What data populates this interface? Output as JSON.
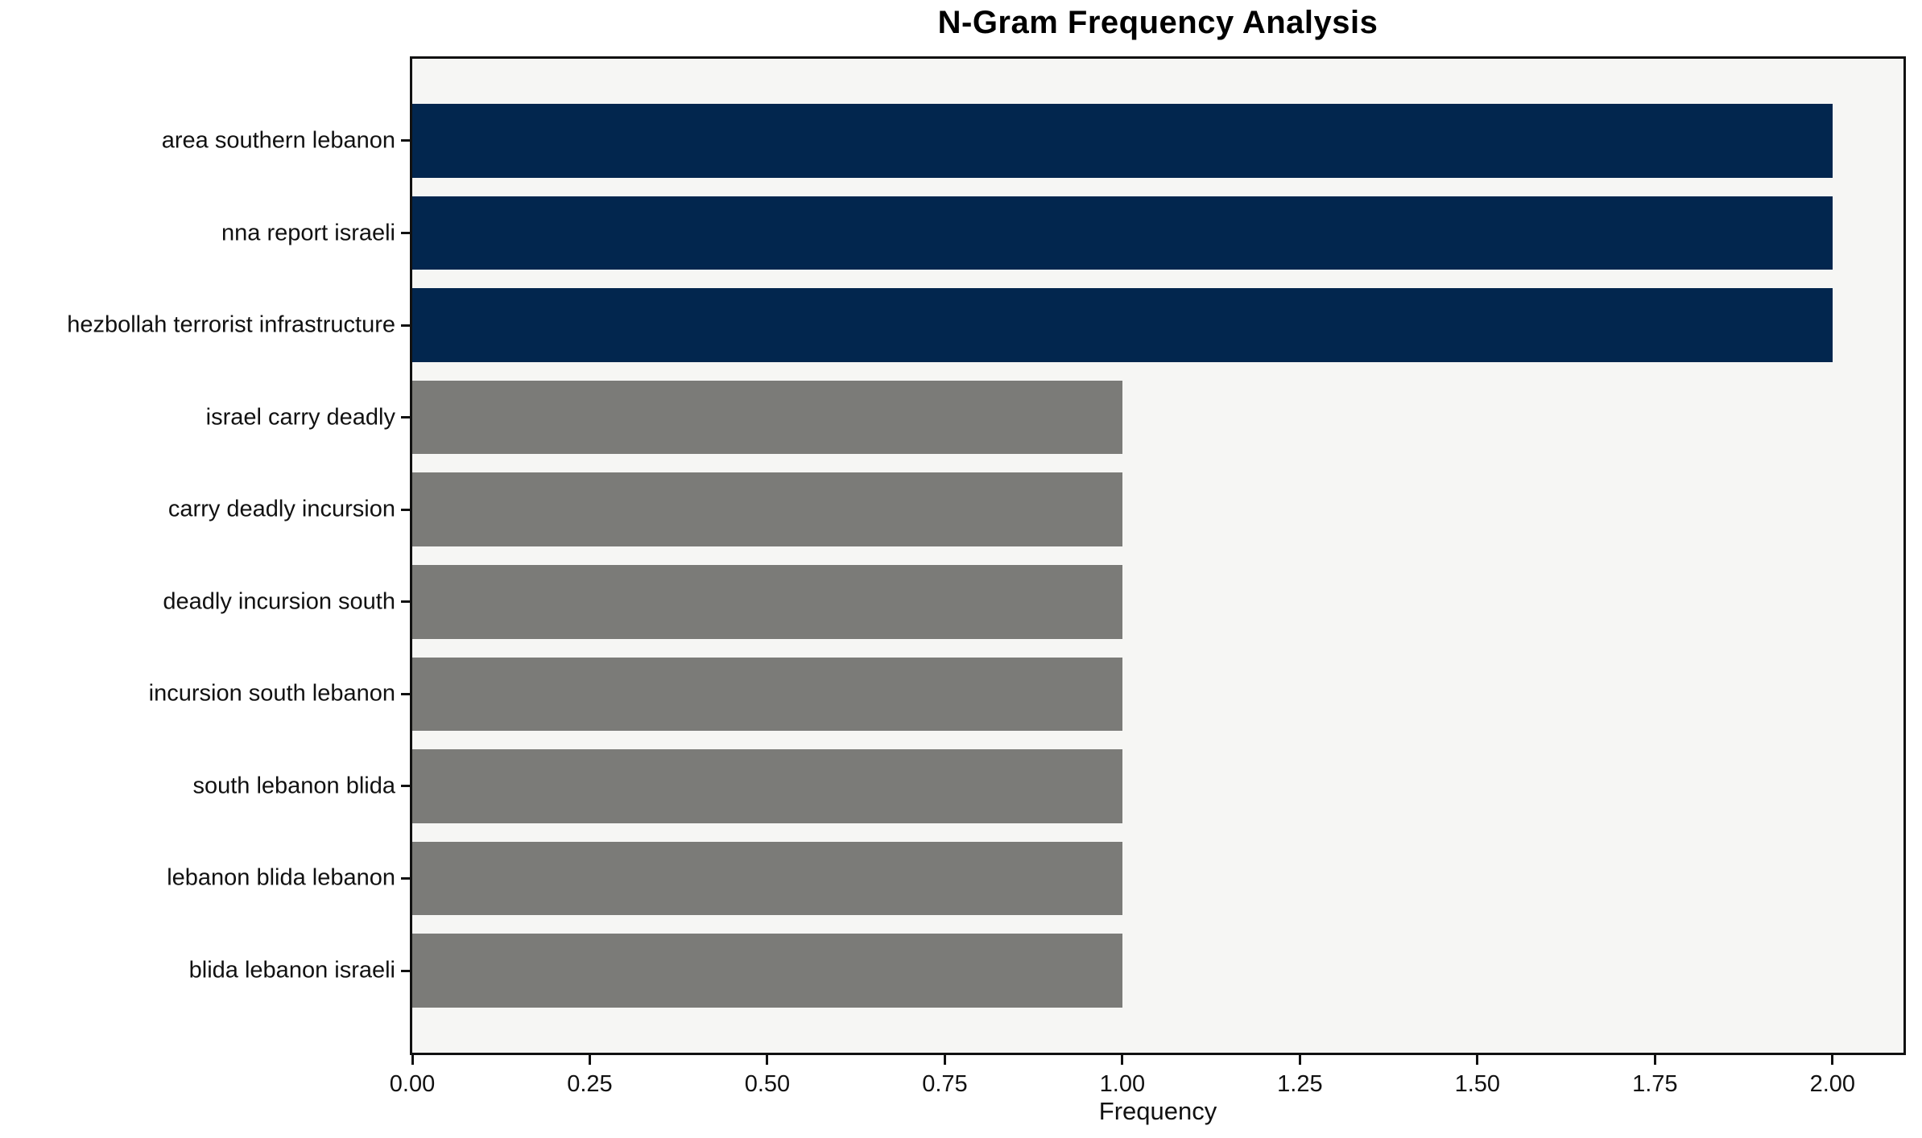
{
  "chart_data": {
    "type": "bar",
    "orientation": "horizontal",
    "title": "N-Gram Frequency Analysis",
    "xlabel": "Frequency",
    "ylabel": "",
    "categories": [
      "area southern lebanon",
      "nna report israeli",
      "hezbollah terrorist infrastructure",
      "israel carry deadly",
      "carry deadly incursion",
      "deadly incursion south",
      "incursion south lebanon",
      "south lebanon blida",
      "lebanon blida lebanon",
      "blida lebanon israeli"
    ],
    "values": [
      2,
      2,
      2,
      1,
      1,
      1,
      1,
      1,
      1,
      1
    ],
    "bar_colors": [
      "#02264e",
      "#02264e",
      "#02264e",
      "#7b7b78",
      "#7b7b78",
      "#7b7b78",
      "#7b7b78",
      "#7b7b78",
      "#7b7b78",
      "#7b7b78"
    ],
    "xlim": [
      0,
      2.1
    ],
    "xtick_labels": [
      "0.00",
      "0.25",
      "0.50",
      "0.75",
      "1.00",
      "1.25",
      "1.50",
      "1.75",
      "2.00"
    ],
    "xtick_values": [
      0,
      0.25,
      0.5,
      0.75,
      1.0,
      1.25,
      1.5,
      1.75,
      2.0
    ],
    "grid": false,
    "legend": null,
    "colors": {
      "highlight_bar": "#02264e",
      "default_bar": "#7b7b78",
      "plot_background": "#f6f6f4",
      "figure_background": "#ffffff",
      "spine": "#111111",
      "text": "#111111"
    }
  }
}
